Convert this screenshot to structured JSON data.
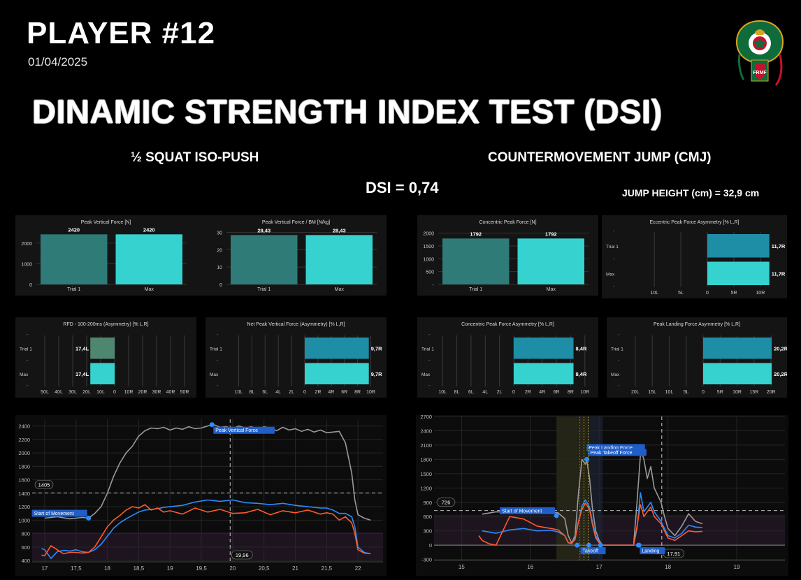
{
  "header": {
    "player": "PLAYER #12",
    "date": "01/04/2025",
    "title": "DINAMIC STRENGTH INDEX TEST (DSI)",
    "left_subtitle": "½  SQUAT ISO-PUSH",
    "right_subtitle": "COUNTERMOVEMENT JUMP (CMJ)",
    "dsi": "DSI = 0,74",
    "jump_height": "JUMP HEIGHT (cm) = 32,9 cm",
    "logo_text": "FRMF"
  },
  "colors": {
    "trial": "#2e7b78",
    "max": "#35d2cf",
    "asym_bar": "#1e8ea7",
    "green_bar": "#4f8670",
    "grey_line": "#9a9a9a",
    "blue_line": "#2b8cff",
    "orange_line": "#ff5a2a",
    "label_bg": "#1f5ec8"
  },
  "bar_charts": [
    {
      "title": "Peak Vertical Force [N]",
      "categories": [
        "Trial 1",
        "Max"
      ],
      "values": [
        2420,
        2420
      ],
      "labels": [
        "2420",
        "2420"
      ],
      "ymax": 2600,
      "ticks": [
        "0",
        "1000",
        "2000"
      ],
      "tickvals": [
        0,
        1000,
        2000
      ]
    },
    {
      "title": "Peak Vertical Force / BM [N/kg]",
      "categories": [
        "Trial 1",
        "Max"
      ],
      "values": [
        28.43,
        28.43
      ],
      "labels": [
        "28,43",
        "28,43"
      ],
      "ymax": 31,
      "ticks": [
        "0",
        "10",
        "20",
        "30"
      ],
      "tickvals": [
        0,
        10,
        20,
        30
      ]
    },
    {
      "title": "Concentric Peak Force [N]",
      "categories": [
        "Trial 1",
        "Max"
      ],
      "values": [
        1792,
        1792
      ],
      "labels": [
        "1792",
        "1792"
      ],
      "ymax": 2100,
      "ticks": [
        "-",
        "500",
        "1000",
        "1500",
        "2000"
      ],
      "tickvals": [
        0,
        500,
        1000,
        1500,
        2000
      ]
    }
  ],
  "asym_charts": [
    {
      "title": "Eccentric Peak Force Asymmetry [% L,R]",
      "rows": [
        "Trial 1",
        "Max"
      ],
      "labels": [
        "11,7R",
        "11,7R"
      ],
      "values": [
        11.7,
        11.7
      ],
      "xticks": [
        "10L",
        "5L",
        "0",
        "5R",
        "10R"
      ],
      "tickvals": [
        -10,
        -5,
        0,
        5,
        10
      ],
      "range": [
        -12,
        12
      ]
    },
    {
      "title": "RFD - 100-200ms (Asymmetry) [% L,R]",
      "rows": [
        "Trial 1",
        "Max"
      ],
      "labels": [
        "17,4L",
        "17,4L"
      ],
      "values": [
        -17.4,
        -17.4
      ],
      "xticks": [
        "50L",
        "40L",
        "30L",
        "20L",
        "10L",
        "0",
        "10R",
        "20R",
        "30R",
        "40R",
        "50R"
      ],
      "tickvals": [
        -50,
        -40,
        -30,
        -20,
        -10,
        0,
        10,
        20,
        30,
        40,
        50
      ],
      "range": [
        -52,
        52
      ]
    },
    {
      "title": "Net Peak Vertical Force (Asymmetry) [% L,R]",
      "rows": [
        "Trial 1",
        "Max"
      ],
      "labels": [
        "9,7R",
        "9,7R"
      ],
      "values": [
        9.7,
        9.7
      ],
      "xticks": [
        "10L",
        "8L",
        "6L",
        "4L",
        "2L",
        "0",
        "2R",
        "4R",
        "6R",
        "8R",
        "10R"
      ],
      "tickvals": [
        -10,
        -8,
        -6,
        -4,
        -2,
        0,
        2,
        4,
        6,
        8,
        10
      ],
      "range": [
        -11,
        11
      ]
    },
    {
      "title": "Concentric Peak Force Asymmetry [% L,R]",
      "rows": [
        "Trial 1",
        "Max"
      ],
      "labels": [
        "8,4R",
        "8,4R"
      ],
      "values": [
        8.4,
        8.4
      ],
      "xticks": [
        "10L",
        "8L",
        "6L",
        "4L",
        "2L",
        "0",
        "2R",
        "4R",
        "6R",
        "8R",
        "10R"
      ],
      "tickvals": [
        -10,
        -8,
        -6,
        -4,
        -2,
        0,
        2,
        4,
        6,
        8,
        10
      ],
      "range": [
        -11,
        11
      ]
    },
    {
      "title": "Peak Landing Force Asymmetry [% L,R]",
      "rows": [
        "Trial 1",
        "Max"
      ],
      "labels": [
        "20,2R",
        "20,2R"
      ],
      "values": [
        20.2,
        20.2
      ],
      "xticks": [
        "20L",
        "15L",
        "10L",
        "5L",
        "0",
        "5R",
        "10R",
        "15R",
        "20R"
      ],
      "tickvals": [
        -20,
        -15,
        -10,
        -5,
        0,
        5,
        10,
        15,
        20
      ],
      "range": [
        -21,
        21
      ]
    }
  ],
  "chart_data": [
    {
      "type": "line",
      "name": "iso-push-force-time",
      "xlim": [
        16.8,
        22.4
      ],
      "ylim": [
        380,
        2500
      ],
      "xticks": [
        17,
        17.5,
        18,
        18.5,
        19,
        19.5,
        20,
        20.5,
        21,
        21.5,
        22
      ],
      "xtick_labels": [
        "17",
        "17,5",
        "18",
        "18,5",
        "19",
        "19,5",
        "20",
        "20,5",
        "21",
        "21,5",
        "22"
      ],
      "yticks": [
        400,
        600,
        800,
        1000,
        1200,
        1400,
        1600,
        1800,
        2000,
        2200,
        2400
      ],
      "ytick_labels": [
        "400",
        "600",
        "800",
        "1000",
        "1200",
        "1400",
        "1600",
        "1800",
        "2000",
        "2200",
        "2400"
      ],
      "band": [
        400,
        820
      ],
      "ref_line_y": 1405,
      "ref_line_label": "1405",
      "cursor_x": 19.96,
      "cursor_label": "19,96",
      "markers": [
        {
          "label": "Start of Movement",
          "x": 17.7,
          "y": 1030
        },
        {
          "label": "Peak Vertical Force",
          "x": 19.67,
          "y": 2420
        }
      ],
      "series": [
        {
          "color": "#9a9a9a",
          "x": [
            17.0,
            17.2,
            17.4,
            17.6,
            17.7,
            17.8,
            17.9,
            18.0,
            18.1,
            18.2,
            18.3,
            18.4,
            18.5,
            18.6,
            18.7,
            18.8,
            18.9,
            19.0,
            19.1,
            19.2,
            19.3,
            19.4,
            19.5,
            19.6,
            19.7,
            19.8,
            19.9,
            20.0,
            20.1,
            20.2,
            20.3,
            20.4,
            20.5,
            20.6,
            20.7,
            20.8,
            20.9,
            21.0,
            21.1,
            21.2,
            21.3,
            21.4,
            21.5,
            21.6,
            21.7,
            21.8,
            21.9,
            21.95,
            22.0,
            22.1,
            22.2
          ],
          "y": [
            1030,
            1050,
            1020,
            1040,
            1030,
            1100,
            1200,
            1400,
            1650,
            1850,
            2000,
            2100,
            2250,
            2330,
            2370,
            2360,
            2380,
            2340,
            2370,
            2350,
            2390,
            2360,
            2370,
            2400,
            2420,
            2380,
            2390,
            2360,
            2400,
            2370,
            2390,
            2350,
            2390,
            2370,
            2330,
            2380,
            2340,
            2360,
            2320,
            2350,
            2310,
            2340,
            2300,
            2310,
            2320,
            2150,
            1700,
            1300,
            1080,
            1030,
            1000
          ]
        },
        {
          "color": "#2b8cff",
          "x": [
            16.95,
            17.0,
            17.1,
            17.2,
            17.3,
            17.4,
            17.5,
            17.6,
            17.7,
            17.8,
            17.9,
            18.0,
            18.1,
            18.2,
            18.3,
            18.4,
            18.5,
            18.6,
            18.7,
            18.8,
            18.9,
            19.0,
            19.2,
            19.4,
            19.6,
            19.8,
            20.0,
            20.2,
            20.4,
            20.6,
            20.8,
            21.0,
            21.2,
            21.4,
            21.5,
            21.6,
            21.7,
            21.8,
            21.9,
            21.95,
            22.0,
            22.1,
            22.2
          ],
          "y": [
            580,
            560,
            430,
            530,
            550,
            540,
            560,
            530,
            520,
            560,
            640,
            760,
            880,
            960,
            1020,
            1070,
            1120,
            1150,
            1160,
            1170,
            1190,
            1200,
            1220,
            1270,
            1300,
            1280,
            1300,
            1260,
            1250,
            1230,
            1250,
            1220,
            1200,
            1180,
            1180,
            1150,
            1100,
            1100,
            1050,
            900,
            600,
            520,
            500
          ]
        },
        {
          "color": "#ff5a2a",
          "x": [
            16.95,
            17.0,
            17.1,
            17.2,
            17.3,
            17.4,
            17.5,
            17.6,
            17.7,
            17.8,
            17.9,
            18.0,
            18.1,
            18.2,
            18.3,
            18.4,
            18.5,
            18.6,
            18.7,
            18.8,
            18.9,
            19.0,
            19.2,
            19.4,
            19.6,
            19.8,
            20.0,
            20.2,
            20.4,
            20.6,
            20.8,
            21.0,
            21.2,
            21.4,
            21.5,
            21.6,
            21.7,
            21.8,
            21.9,
            21.95,
            22.0,
            22.1,
            22.2
          ],
          "y": [
            480,
            470,
            620,
            560,
            500,
            520,
            520,
            510,
            520,
            600,
            750,
            900,
            1000,
            1070,
            1150,
            1200,
            1180,
            1230,
            1150,
            1180,
            1120,
            1140,
            1090,
            1180,
            1120,
            1160,
            1100,
            1110,
            1160,
            1080,
            1140,
            1110,
            1150,
            1090,
            1110,
            1090,
            1000,
            1050,
            960,
            800,
            560,
            510,
            500
          ]
        }
      ]
    },
    {
      "type": "line",
      "name": "cmj-force-time",
      "xlim": [
        14.6,
        19.7
      ],
      "ylim": [
        -320,
        2700
      ],
      "xticks": [
        15,
        16,
        17,
        18,
        19
      ],
      "xtick_labels": [
        "15",
        "16",
        "17",
        "18",
        "19"
      ],
      "yticks": [
        -300,
        0,
        300,
        600,
        900,
        1200,
        1500,
        1800,
        2100,
        2400,
        2700
      ],
      "ytick_labels": [
        "-300",
        "0",
        "300",
        "600",
        "900",
        "1200",
        "1500",
        "1800",
        "2100",
        "2400",
        "2700"
      ],
      "band": [
        0,
        640
      ],
      "ref_line_y": 726,
      "ref_line_label": "726",
      "cursor_x": 17.91,
      "cursor_label": "17,91",
      "shade_regions": [
        [
          16.38,
          16.7
        ],
        [
          16.7,
          16.85
        ],
        [
          16.85,
          17.05
        ]
      ],
      "markers": [
        {
          "label": "Start of Movement",
          "x": 16.38,
          "y": 620
        },
        {
          "label": "Peak Landing Force",
          "x": 17.61,
          "y": 1930
        },
        {
          "label": "Peak Takeoff Force",
          "x": 16.82,
          "y": 1800
        },
        {
          "label": "Takeoff",
          "x": 16.85,
          "y": 0
        },
        {
          "label": "Landing",
          "x": 17.57,
          "y": 0
        }
      ],
      "series": [
        {
          "color": "#9a9a9a",
          "x": [
            15.3,
            15.5,
            15.7,
            15.9,
            16.1,
            16.3,
            16.4,
            16.5,
            16.55,
            16.6,
            16.65,
            16.7,
            16.75,
            16.8,
            16.82,
            16.86,
            16.9,
            16.95,
            17.0,
            17.05,
            17.5,
            17.55,
            17.6,
            17.62,
            17.65,
            17.7,
            17.75,
            17.8,
            17.9,
            17.95,
            18.0,
            18.1,
            18.2,
            18.3,
            18.4,
            18.5
          ],
          "y": [
            650,
            700,
            690,
            720,
            700,
            690,
            680,
            560,
            200,
            50,
            200,
            1100,
            1800,
            1700,
            1780,
            1400,
            800,
            300,
            100,
            0,
            0,
            900,
            1900,
            1930,
            1800,
            1400,
            1650,
            1200,
            900,
            600,
            350,
            200,
            400,
            660,
            500,
            450
          ]
        },
        {
          "color": "#2b8cff",
          "x": [
            15.3,
            15.5,
            15.7,
            15.9,
            16.1,
            16.3,
            16.4,
            16.5,
            16.55,
            16.6,
            16.65,
            16.7,
            16.75,
            16.8,
            16.86,
            16.9,
            16.95,
            17.0,
            17.05,
            17.5,
            17.55,
            17.6,
            17.65,
            17.7,
            17.75,
            17.8,
            17.9,
            17.95,
            18.0,
            18.1,
            18.2,
            18.3,
            18.4,
            18.5
          ],
          "y": [
            300,
            250,
            320,
            350,
            300,
            310,
            280,
            200,
            60,
            30,
            150,
            500,
            820,
            950,
            800,
            500,
            200,
            60,
            0,
            0,
            350,
            1100,
            700,
            800,
            900,
            700,
            500,
            350,
            200,
            150,
            250,
            420,
            380,
            370
          ]
        },
        {
          "color": "#ff5a2a",
          "x": [
            15.25,
            15.3,
            15.4,
            15.5,
            15.7,
            15.9,
            16.1,
            16.3,
            16.4,
            16.5,
            16.55,
            16.6,
            16.65,
            16.7,
            16.75,
            16.8,
            16.86,
            16.9,
            16.95,
            17.0,
            17.05,
            17.5,
            17.55,
            17.6,
            17.65,
            17.7,
            17.75,
            17.8,
            17.9,
            17.95,
            18.0,
            18.1,
            18.2,
            18.3,
            18.4,
            18.5
          ],
          "y": [
            200,
            100,
            30,
            0,
            600,
            550,
            400,
            350,
            320,
            200,
            50,
            40,
            120,
            500,
            750,
            880,
            750,
            450,
            150,
            50,
            0,
            0,
            400,
            850,
            600,
            700,
            800,
            600,
            450,
            300,
            150,
            100,
            200,
            300,
            280,
            290
          ]
        }
      ]
    }
  ]
}
